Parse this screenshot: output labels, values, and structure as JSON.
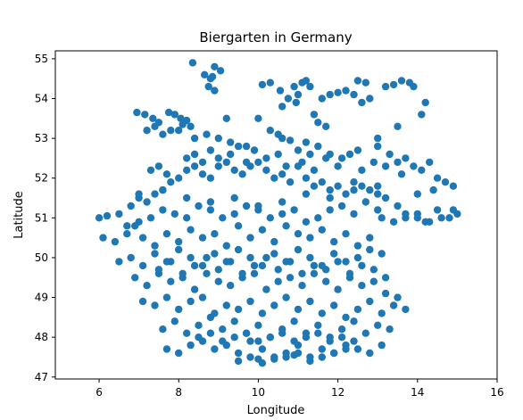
{
  "chart_data": {
    "type": "scatter",
    "title": "Biergarten in Germany",
    "xlabel": "Longitude",
    "ylabel": "Latitude",
    "xlim": [
      4.9,
      16.0
    ],
    "ylim": [
      46.95,
      55.2
    ],
    "xticks": [
      6,
      8,
      10,
      12,
      14,
      16
    ],
    "yticks": [
      47,
      48,
      49,
      50,
      51,
      52,
      53,
      54,
      55
    ],
    "grid": false,
    "marker_color": "#1f77b4",
    "series": [
      {
        "x": [
          8.35,
          8.65,
          8.85,
          8.9,
          9.05,
          8.8,
          8.75,
          8.9,
          9.2,
          6.95,
          7.15,
          7.35,
          7.5,
          7.75,
          7.9,
          8.05,
          8.2,
          8.3,
          7.2,
          7.6,
          8.0,
          8.4,
          8.7,
          9.0,
          9.3,
          9.7,
          7.4,
          7.8,
          8.1,
          10.1,
          10.3,
          10.55,
          10.75,
          10.9,
          11.0,
          11.1,
          11.2,
          11.3,
          10.6,
          10.95,
          11.4,
          11.6,
          11.8,
          12.0,
          12.2,
          12.4,
          12.6,
          12.8,
          11.5,
          11.7,
          12.5,
          12.7,
          13.2,
          13.4,
          13.6,
          13.8,
          13.9,
          14.1,
          14.2,
          13.5,
          13.0,
          10.0,
          10.3,
          10.6,
          11.0,
          11.2,
          11.5,
          11.8,
          12.1,
          12.5,
          10.5,
          10.8,
          11.3,
          13.0,
          13.3,
          13.5,
          13.7,
          13.9,
          14.1,
          14.3,
          14.5,
          14.7,
          14.9,
          13.2,
          13.6,
          14.0,
          14.4,
          6.0,
          6.2,
          6.5,
          6.8,
          7.0,
          7.2,
          7.4,
          7.6,
          7.8,
          8.0,
          8.2,
          8.4,
          8.6,
          8.8,
          9.0,
          9.2,
          9.4,
          9.6,
          9.8,
          10.0,
          10.2,
          10.4,
          10.6,
          10.8,
          11.0,
          11.2,
          11.4,
          11.6,
          11.8,
          12.0,
          12.2,
          12.4,
          12.6,
          12.8,
          13.0,
          13.2,
          6.7,
          7.0,
          7.3,
          7.6,
          7.9,
          8.2,
          8.5,
          8.8,
          9.1,
          9.4,
          9.7,
          10.0,
          10.3,
          10.6,
          10.9,
          11.2,
          11.5,
          11.8,
          12.1,
          12.4,
          12.7,
          13.0,
          13.5,
          14.0,
          14.5,
          15.0,
          14.8,
          14.2,
          13.7,
          6.1,
          6.4,
          6.7,
          6.9,
          7.1,
          7.4,
          7.7,
          8.0,
          8.3,
          8.6,
          8.9,
          9.2,
          9.5,
          9.8,
          10.1,
          10.4,
          10.7,
          11.0,
          11.3,
          11.6,
          11.9,
          12.2,
          12.5,
          12.8,
          13.1,
          13.4,
          13.7,
          14.0,
          14.3,
          14.6,
          14.9,
          6.5,
          6.8,
          7.1,
          7.4,
          7.7,
          8.0,
          8.3,
          8.6,
          8.9,
          9.2,
          9.5,
          9.8,
          10.1,
          10.4,
          10.7,
          11.0,
          11.3,
          11.6,
          11.9,
          12.2,
          12.5,
          12.8,
          13.1,
          6.9,
          7.2,
          7.5,
          7.8,
          8.1,
          8.4,
          8.7,
          9.0,
          9.3,
          9.6,
          9.9,
          10.2,
          10.5,
          10.8,
          11.1,
          11.4,
          11.7,
          12.0,
          12.3,
          12.6,
          12.9,
          13.2,
          13.5,
          7.1,
          7.4,
          7.7,
          8.0,
          8.3,
          8.6,
          8.9,
          9.2,
          9.5,
          9.8,
          10.1,
          10.4,
          10.7,
          11.0,
          11.3,
          11.6,
          11.9,
          12.2,
          12.5,
          12.8,
          13.1,
          13.4,
          13.7,
          7.6,
          7.9,
          8.2,
          8.5,
          8.8,
          9.1,
          9.4,
          9.7,
          10.0,
          10.3,
          10.6,
          10.9,
          11.2,
          11.5,
          11.8,
          12.1,
          12.4,
          12.7,
          13.0,
          13.3,
          7.7,
          8.0,
          8.3,
          8.6,
          8.9,
          9.2,
          9.5,
          9.8,
          10.1,
          10.4,
          10.7,
          11.0,
          11.3,
          11.6,
          11.9,
          12.2,
          12.5,
          12.8,
          13.1,
          9.5,
          9.8,
          10.1,
          10.4,
          10.7,
          11.0,
          11.3,
          11.6,
          11.9,
          12.2,
          10.0,
          10.9,
          7.3,
          7.5,
          7.7,
          8.2,
          8.4,
          8.6,
          8.8,
          9.0,
          9.3,
          9.5,
          9.7,
          9.9,
          10.2,
          10.5,
          10.7,
          11.1,
          11.4,
          11.7,
          12.0,
          12.3,
          12.6,
          12.9,
          7.5,
          7.8,
          8.1,
          8.4,
          8.7,
          9.0,
          9.3,
          9.6,
          9.9,
          10.2,
          10.5,
          10.8,
          11.1,
          11.4,
          11.7,
          12.0,
          12.3,
          12.6,
          12.9,
          13.2,
          8.5,
          8.8,
          9.1,
          9.4,
          9.7,
          10.0,
          10.3,
          10.6,
          10.9,
          11.2,
          11.5,
          11.8,
          12.1,
          12.4,
          7.0,
          7.6,
          8.2,
          8.8,
          9.4,
          10.0,
          10.6,
          11.2,
          11.8,
          12.4,
          13.0
        ],
        "y": [
          54.9,
          54.6,
          54.55,
          54.8,
          54.7,
          54.5,
          54.3,
          54.2,
          53.5,
          53.65,
          53.6,
          53.5,
          53.4,
          53.65,
          53.6,
          53.5,
          53.45,
          53.3,
          53.2,
          53.1,
          53.2,
          53.0,
          53.1,
          53.0,
          52.9,
          52.8,
          53.3,
          53.2,
          53.35,
          54.35,
          54.4,
          54.2,
          54.0,
          54.3,
          54.1,
          54.4,
          54.45,
          54.3,
          53.8,
          53.9,
          53.6,
          54.0,
          54.1,
          54.15,
          54.2,
          54.1,
          53.9,
          54.0,
          53.4,
          53.3,
          54.45,
          54.4,
          54.3,
          54.35,
          54.45,
          54.4,
          54.3,
          53.6,
          53.9,
          53.3,
          53.0,
          53.5,
          53.2,
          53.0,
          52.7,
          52.9,
          52.8,
          52.6,
          52.5,
          52.7,
          53.1,
          52.95,
          52.6,
          52.8,
          52.6,
          52.4,
          52.5,
          52.3,
          52.2,
          52.4,
          52.0,
          51.9,
          51.8,
          52.3,
          52.1,
          51.6,
          51.7,
          51.0,
          51.05,
          51.1,
          51.3,
          51.5,
          51.4,
          51.6,
          51.7,
          51.9,
          52.0,
          52.2,
          52.3,
          52.1,
          52.0,
          52.3,
          52.4,
          52.2,
          52.1,
          52.3,
          52.4,
          52.2,
          52.0,
          52.1,
          51.9,
          52.3,
          52.0,
          51.8,
          51.9,
          51.7,
          51.8,
          51.6,
          51.9,
          51.8,
          51.7,
          51.6,
          51.5,
          50.8,
          50.9,
          51.0,
          51.2,
          51.1,
          51.0,
          51.3,
          51.2,
          51.0,
          51.1,
          51.3,
          51.2,
          51.0,
          51.1,
          51.2,
          50.9,
          51.0,
          51.2,
          51.3,
          51.1,
          51.4,
          51.2,
          51.3,
          51.1,
          51.2,
          51.1,
          51.0,
          50.9,
          51.0,
          50.5,
          50.4,
          50.6,
          50.8,
          50.5,
          50.3,
          50.6,
          50.4,
          50.7,
          50.5,
          50.6,
          50.3,
          50.8,
          50.5,
          50.7,
          50.4,
          50.8,
          50.6,
          50.5,
          50.7,
          50.4,
          50.6,
          50.3,
          50.5,
          51.0,
          50.9,
          51.1,
          51.0,
          50.9,
          51.0,
          51.2,
          49.9,
          50.0,
          49.8,
          50.1,
          49.9,
          50.2,
          50.0,
          49.8,
          50.1,
          49.9,
          50.2,
          50.0,
          49.8,
          50.1,
          49.9,
          50.2,
          50.0,
          49.8,
          50.1,
          49.9,
          50.0,
          50.2,
          50.1,
          49.5,
          49.3,
          49.6,
          49.4,
          49.5,
          49.2,
          49.6,
          49.4,
          49.3,
          49.5,
          49.6,
          49.2,
          49.4,
          49.5,
          49.3,
          49.6,
          49.4,
          49.2,
          49.5,
          49.3,
          49.4,
          49.1,
          49.0,
          48.9,
          48.8,
          49.0,
          48.7,
          48.9,
          49.0,
          48.6,
          48.8,
          48.7,
          48.9,
          48.6,
          48.8,
          49.0,
          48.7,
          48.9,
          48.6,
          48.8,
          48.5,
          48.7,
          48.9,
          48.6,
          48.8,
          48.7,
          48.2,
          48.4,
          48.1,
          48.3,
          48.5,
          48.2,
          48.4,
          48.1,
          48.3,
          48.0,
          48.2,
          48.4,
          48.1,
          48.3,
          48.0,
          48.2,
          48.4,
          48.1,
          48.3,
          48.2,
          47.7,
          47.6,
          47.8,
          47.9,
          47.7,
          47.8,
          47.6,
          47.9,
          47.7,
          47.5,
          47.6,
          47.8,
          47.5,
          47.7,
          47.6,
          47.8,
          47.7,
          47.6,
          47.8,
          47.4,
          47.5,
          47.35,
          47.45,
          47.5,
          47.6,
          47.4,
          47.5,
          47.6,
          47.7,
          47.45,
          47.55,
          52.2,
          52.3,
          52.1,
          52.5,
          52.6,
          52.4,
          52.7,
          52.5,
          52.6,
          52.8,
          52.4,
          52.7,
          52.5,
          52.6,
          52.3,
          52.4,
          52.2,
          52.5,
          52.3,
          52.6,
          52.2,
          52.4,
          49.7,
          49.9,
          49.6,
          49.8,
          50.0,
          49.7,
          49.9,
          49.6,
          49.8,
          50.0,
          49.7,
          49.9,
          49.6,
          49.8,
          49.7,
          49.9,
          49.6,
          49.8,
          49.7,
          49.5,
          48.0,
          48.1,
          47.9,
          48.0,
          48.1,
          47.9,
          48.0,
          48.1,
          47.9,
          48.0,
          48.1,
          47.9,
          48.0,
          47.9,
          51.6,
          51.7,
          51.5,
          51.4,
          51.5,
          51.3,
          51.4,
          51.6,
          51.5,
          51.7,
          51.8
        ]
      }
    ]
  }
}
